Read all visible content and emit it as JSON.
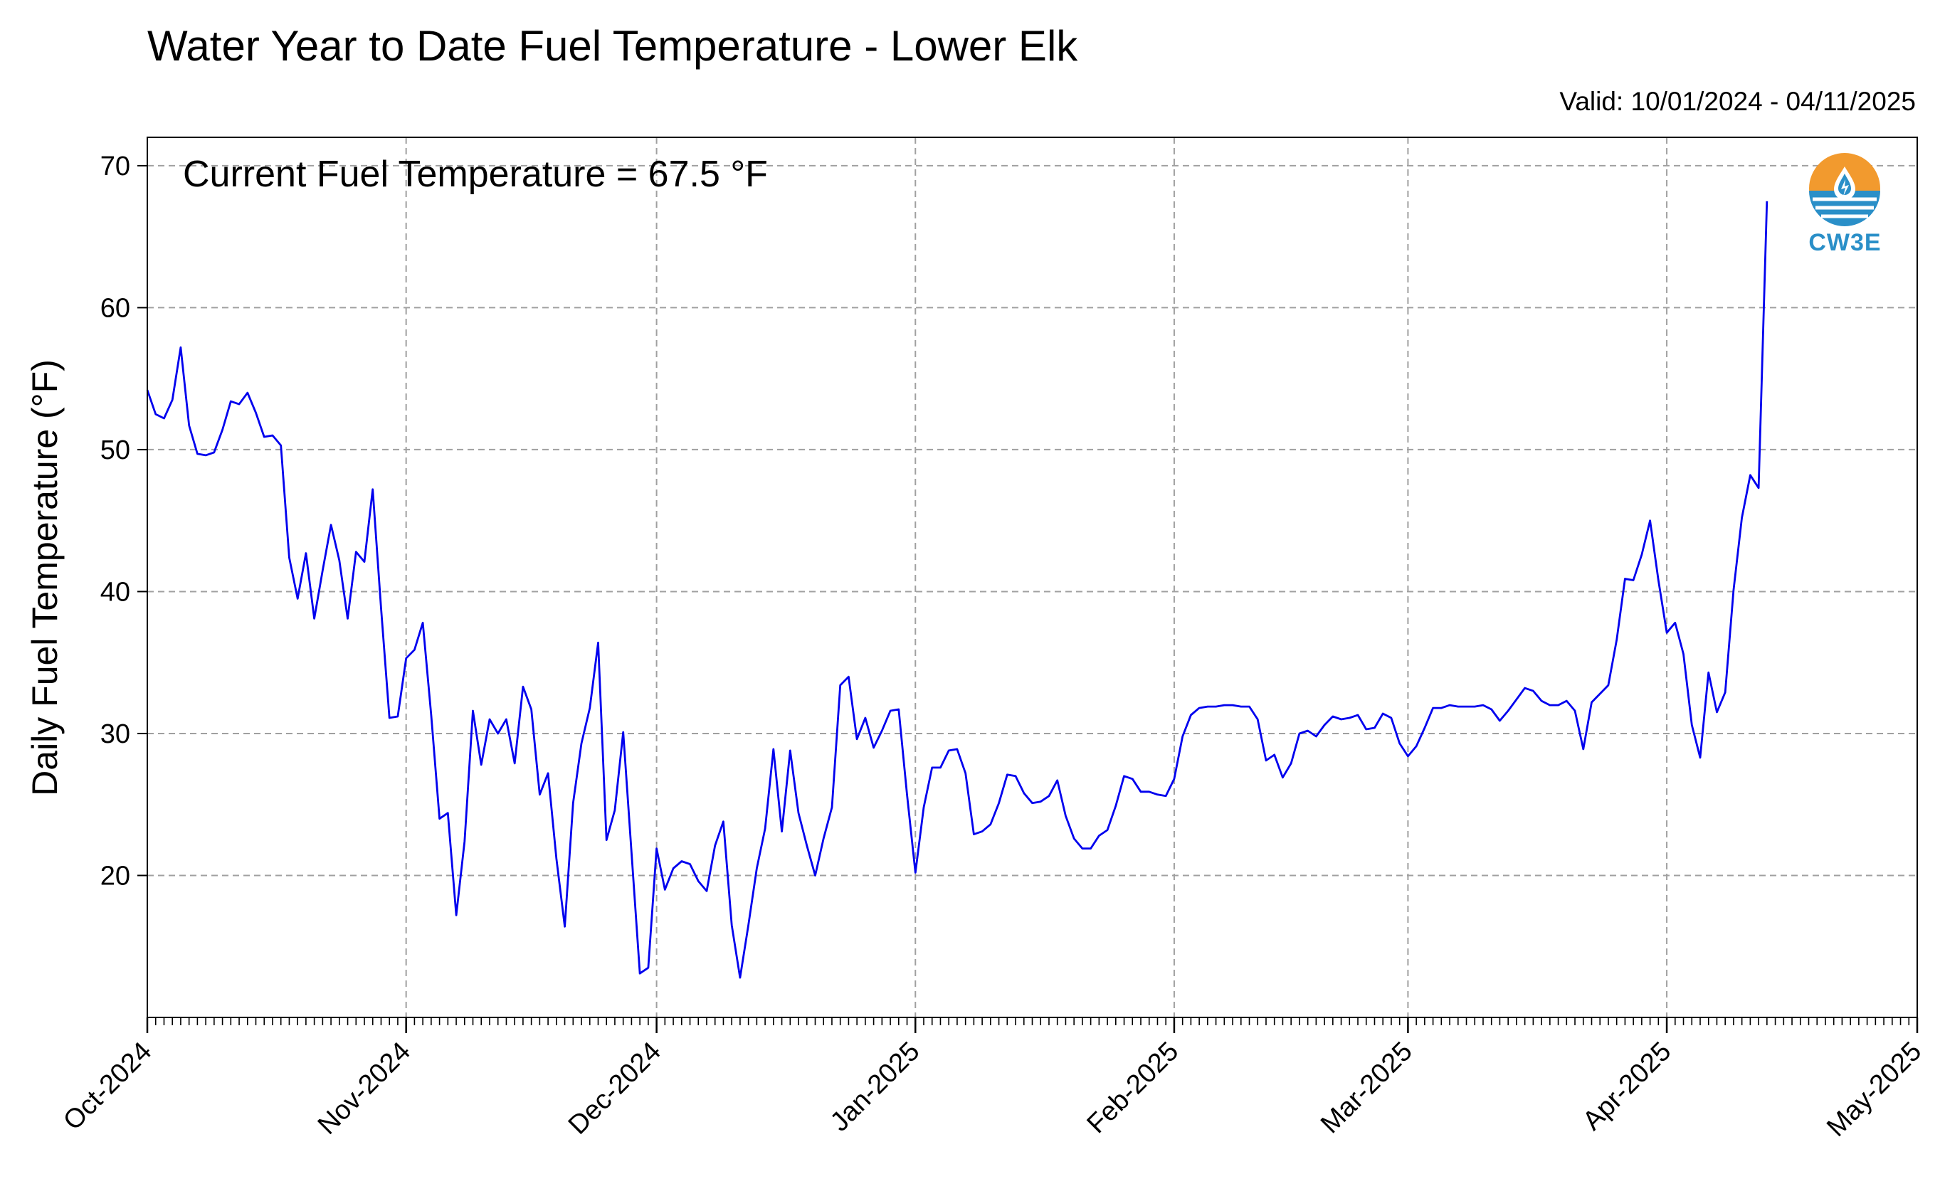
{
  "header": {
    "title": "Water Year to Date Fuel Temperature - Lower Elk",
    "valid": "Valid: 10/01/2024 - 04/11/2025"
  },
  "annotation": "Current Fuel Temperature = 67.5 °F",
  "logo": {
    "text": "CW3E",
    "icon": "cw3e-drop-logo-icon"
  },
  "colors": {
    "line": "#0000ee",
    "grid": "#a0a0a0",
    "logo_orange": "#f29a2e",
    "logo_blue": "#2a8fc8"
  },
  "chart_data": {
    "type": "line",
    "title": "Water Year to Date Fuel Temperature - Lower Elk",
    "xlabel": "",
    "ylabel": "Daily Fuel Temperature (°F)",
    "x_start": "2024-10-01",
    "xlim": [
      "2024-10-01",
      "2025-05-01"
    ],
    "ylim": [
      10,
      72
    ],
    "yticks": [
      20,
      30,
      40,
      50,
      60,
      70
    ],
    "xticks": [
      {
        "date": "2024-10-01",
        "label": "Oct-2024"
      },
      {
        "date": "2024-11-01",
        "label": "Nov-2024"
      },
      {
        "date": "2024-12-01",
        "label": "Dec-2024"
      },
      {
        "date": "2025-01-01",
        "label": "Jan-2025"
      },
      {
        "date": "2025-02-01",
        "label": "Feb-2025"
      },
      {
        "date": "2025-03-01",
        "label": "Mar-2025"
      },
      {
        "date": "2025-04-01",
        "label": "Apr-2025"
      },
      {
        "date": "2025-05-01",
        "label": "May-2025"
      }
    ],
    "grid": true,
    "series": [
      {
        "values": [
          54.2,
          52.5,
          52.2,
          53.5,
          57.2,
          51.7,
          49.7,
          49.6,
          49.8,
          51.4,
          53.4,
          53.2,
          54.0,
          52.6,
          50.9,
          51.0,
          50.3,
          42.4,
          39.5,
          42.7,
          38.1,
          41.5,
          44.7,
          42.2,
          38.1,
          42.8,
          42.1,
          47.2,
          38.8,
          31.1,
          31.2,
          35.3,
          35.9,
          37.8,
          31.3,
          24.0,
          24.4,
          17.2,
          22.4,
          31.6,
          27.8,
          31.0,
          30.0,
          31.0,
          27.9,
          33.3,
          31.7,
          25.7,
          27.2,
          21.2,
          16.4,
          25.1,
          29.3,
          31.8,
          36.4,
          22.5,
          24.6,
          30.1,
          21.6,
          13.1,
          13.5,
          21.9,
          19.0,
          20.5,
          21.0,
          20.8,
          19.6,
          18.9,
          22.1,
          23.8,
          16.5,
          12.8,
          16.5,
          20.5,
          23.3,
          28.9,
          23.1,
          28.8,
          24.4,
          22.1,
          20.0,
          22.6,
          24.8,
          33.4,
          34.0,
          29.6,
          31.1,
          29.0,
          30.2,
          31.6,
          31.7,
          25.7,
          20.2,
          24.8,
          27.6,
          27.6,
          28.8,
          28.9,
          27.2,
          22.9,
          23.1,
          23.6,
          25.1,
          27.1,
          27.0,
          25.8,
          25.1,
          25.2,
          25.6,
          26.7,
          24.2,
          22.6,
          21.9,
          21.9,
          22.8,
          23.2,
          24.9,
          27.0,
          26.8,
          25.9,
          25.9,
          25.7,
          25.6,
          26.8,
          29.8,
          31.3,
          31.8,
          31.9,
          31.9,
          32.0,
          32.0,
          31.9,
          31.9,
          31.0,
          28.1,
          28.5,
          26.9,
          27.9,
          30.0,
          30.2,
          29.8,
          30.6,
          31.2,
          31.0,
          31.1,
          31.3,
          30.3,
          30.4,
          31.4,
          31.1,
          29.3,
          28.4,
          29.1,
          30.4,
          31.8,
          31.8,
          32.0,
          31.9,
          31.9,
          31.9,
          32.0,
          31.7,
          30.9,
          31.6,
          32.4,
          33.2,
          33.0,
          32.3,
          32.0,
          32.0,
          32.3,
          31.6,
          28.9,
          32.2,
          32.8,
          33.4,
          36.6,
          40.9,
          40.8,
          42.6,
          45.0,
          40.8,
          37.1,
          37.8,
          35.6,
          30.6,
          28.3,
          34.3,
          31.5,
          32.9,
          40.1,
          45.2,
          48.2,
          47.3,
          67.5
        ]
      }
    ]
  }
}
